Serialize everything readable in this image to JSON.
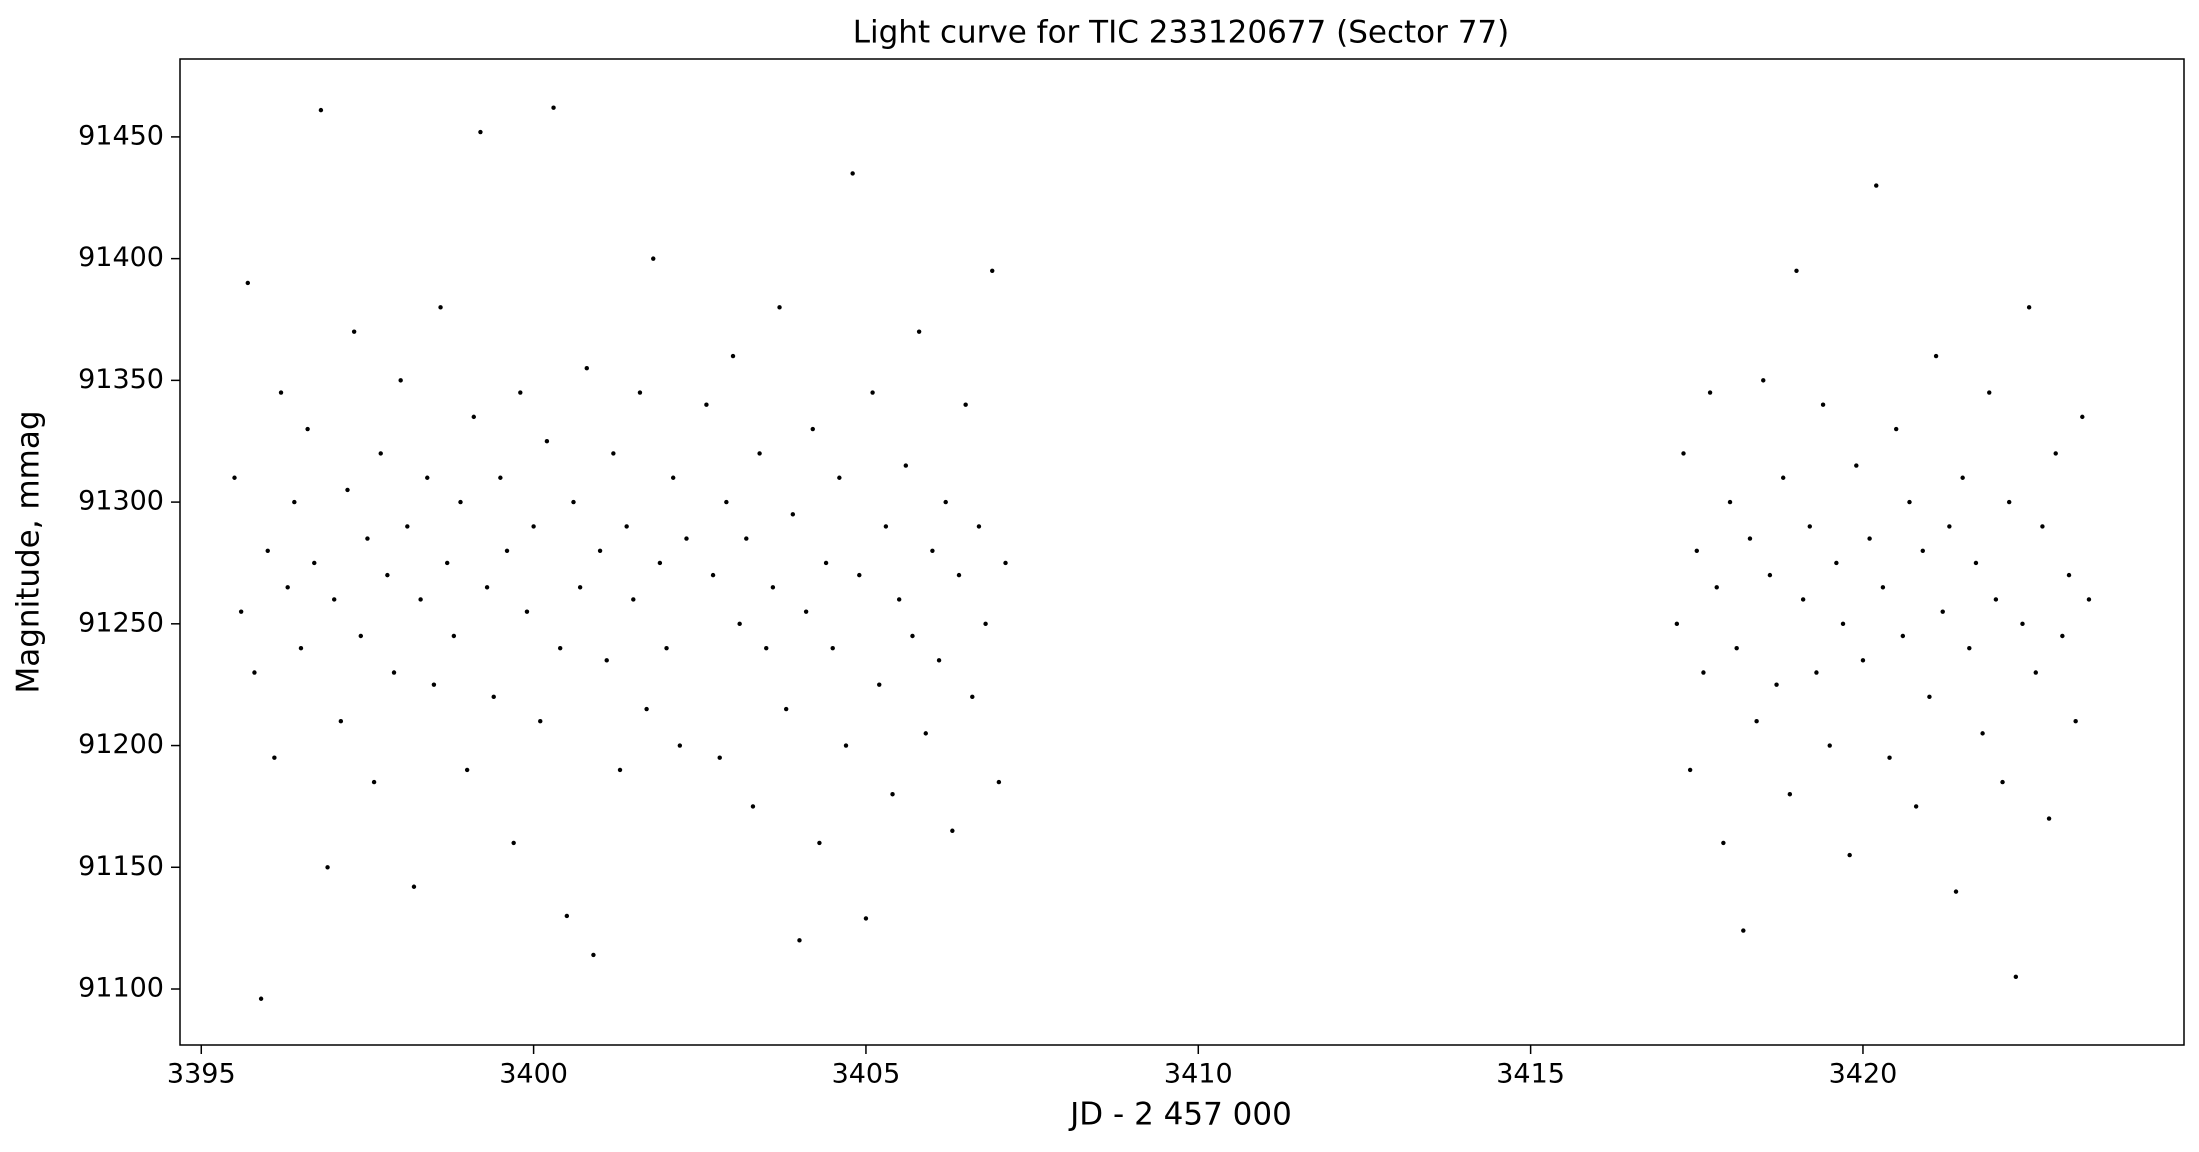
{
  "chart_data": {
    "type": "scatter",
    "title": "Light curve for TIC 233120677 (Sector 77)",
    "x_label": "JD - 2 457 000",
    "y_label": "Magnitude, mmag",
    "color": "#000000",
    "grid": false,
    "xlim": [
      3394.68,
      3424.83
    ],
    "ylim": [
      91077,
      91482
    ],
    "xticks": [
      3395,
      3400,
      3405,
      3410,
      3415,
      3420
    ],
    "yticks": [
      91100,
      91150,
      91200,
      91250,
      91300,
      91350,
      91400,
      91450
    ],
    "x": [
      3395.5,
      3395.6,
      3395.7,
      3395.8,
      3395.9,
      3396.0,
      3396.1,
      3396.2,
      3396.3,
      3396.4,
      3396.5,
      3396.6,
      3396.7,
      3396.8,
      3396.9,
      3397.0,
      3397.1,
      3397.2,
      3397.3,
      3397.4,
      3397.5,
      3397.6,
      3397.7,
      3397.8,
      3397.9,
      3398.0,
      3398.1,
      3398.2,
      3398.3,
      3398.4,
      3398.5,
      3398.6,
      3398.7,
      3398.8,
      3398.9,
      3399.0,
      3399.1,
      3399.2,
      3399.3,
      3399.4,
      3399.5,
      3399.6,
      3399.7,
      3399.8,
      3399.9,
      3400.0,
      3400.1,
      3400.2,
      3400.3,
      3400.4,
      3400.5,
      3400.6,
      3400.7,
      3400.8,
      3400.9,
      3401.0,
      3401.1,
      3401.2,
      3401.3,
      3401.4,
      3401.5,
      3401.6,
      3401.7,
      3401.8,
      3401.9,
      3402.0,
      3402.1,
      3402.2,
      3402.3,
      3402.6,
      3402.7,
      3402.8,
      3402.9,
      3403.0,
      3403.1,
      3403.2,
      3403.3,
      3403.4,
      3403.5,
      3403.6,
      3403.7,
      3403.8,
      3403.9,
      3404.0,
      3404.1,
      3404.2,
      3404.3,
      3404.4,
      3404.5,
      3404.6,
      3404.7,
      3404.8,
      3404.9,
      3405.0,
      3405.1,
      3405.2,
      3405.3,
      3405.4,
      3405.5,
      3405.6,
      3405.7,
      3405.8,
      3405.9,
      3406.0,
      3406.1,
      3406.2,
      3406.3,
      3406.4,
      3406.5,
      3406.6,
      3406.7,
      3406.8,
      3406.9,
      3407.0,
      3407.1,
      3417.2,
      3417.3,
      3417.4,
      3417.5,
      3417.6,
      3417.7,
      3417.8,
      3417.9,
      3418.0,
      3418.1,
      3418.2,
      3418.3,
      3418.4,
      3418.5,
      3418.6,
      3418.7,
      3418.8,
      3418.9,
      3419.0,
      3419.1,
      3419.2,
      3419.3,
      3419.4,
      3419.5,
      3419.6,
      3419.7,
      3419.8,
      3419.9,
      3420.0,
      3420.1,
      3420.2,
      3420.3,
      3420.4,
      3420.5,
      3420.6,
      3420.7,
      3420.8,
      3420.9,
      3421.0,
      3421.1,
      3421.2,
      3421.3,
      3421.4,
      3421.5,
      3421.6,
      3421.7,
      3421.8,
      3421.9,
      3422.0,
      3422.1,
      3422.2,
      3422.3,
      3422.4,
      3422.5,
      3422.6,
      3422.7,
      3422.8,
      3422.9,
      3423.0,
      3423.1,
      3423.2,
      3423.3,
      3423.4
    ],
    "values": [
      91310,
      91255,
      91390,
      91230,
      91096,
      91280,
      91195,
      91345,
      91265,
      91300,
      91240,
      91330,
      91275,
      91461,
      91150,
      91260,
      91210,
      91305,
      91370,
      91245,
      91285,
      91185,
      91320,
      91270,
      91230,
      91350,
      91290,
      91142,
      91260,
      91310,
      91225,
      91380,
      91275,
      91245,
      91300,
      91190,
      91335,
      91452,
      91265,
      91220,
      91310,
      91280,
      91160,
      91345,
      91255,
      91290,
      91210,
      91325,
      91462,
      91240,
      91130,
      91300,
      91265,
      91355,
      91114,
      91280,
      91235,
      91320,
      91190,
      91290,
      91260,
      91345,
      91215,
      91400,
      91275,
      91240,
      91310,
      91200,
      91285,
      91340,
      91270,
      91195,
      91300,
      91360,
      91250,
      91285,
      91175,
      91320,
      91240,
      91265,
      91380,
      91215,
      91295,
      91120,
      91255,
      91330,
      91160,
      91275,
      91240,
      91310,
      91200,
      91435,
      91270,
      91129,
      91345,
      91225,
      91290,
      91180,
      91260,
      91315,
      91245,
      91370,
      91205,
      91280,
      91235,
      91300,
      91165,
      91270,
      91340,
      91220,
      91290,
      91250,
      91395,
      91185,
      91275,
      91250,
      91320,
      91190,
      91280,
      91230,
      91345,
      91265,
      91160,
      91300,
      91240,
      91124,
      91285,
      91210,
      91350,
      91270,
      91225,
      91310,
      91180,
      91395,
      91260,
      91290,
      91230,
      91340,
      91200,
      91275,
      91250,
      91155,
      91315,
      91235,
      91285,
      91430,
      91265,
      91195,
      91330,
      91245,
      91300,
      91175,
      91280,
      91220,
      91360,
      91255,
      91290,
      91140,
      91310,
      91240,
      91275,
      91205,
      91345,
      91260,
      91185,
      91300,
      91105,
      91250,
      91380,
      91230,
      91290,
      91170,
      91320,
      91245,
      91270,
      91210,
      91335,
      91260
    ]
  }
}
